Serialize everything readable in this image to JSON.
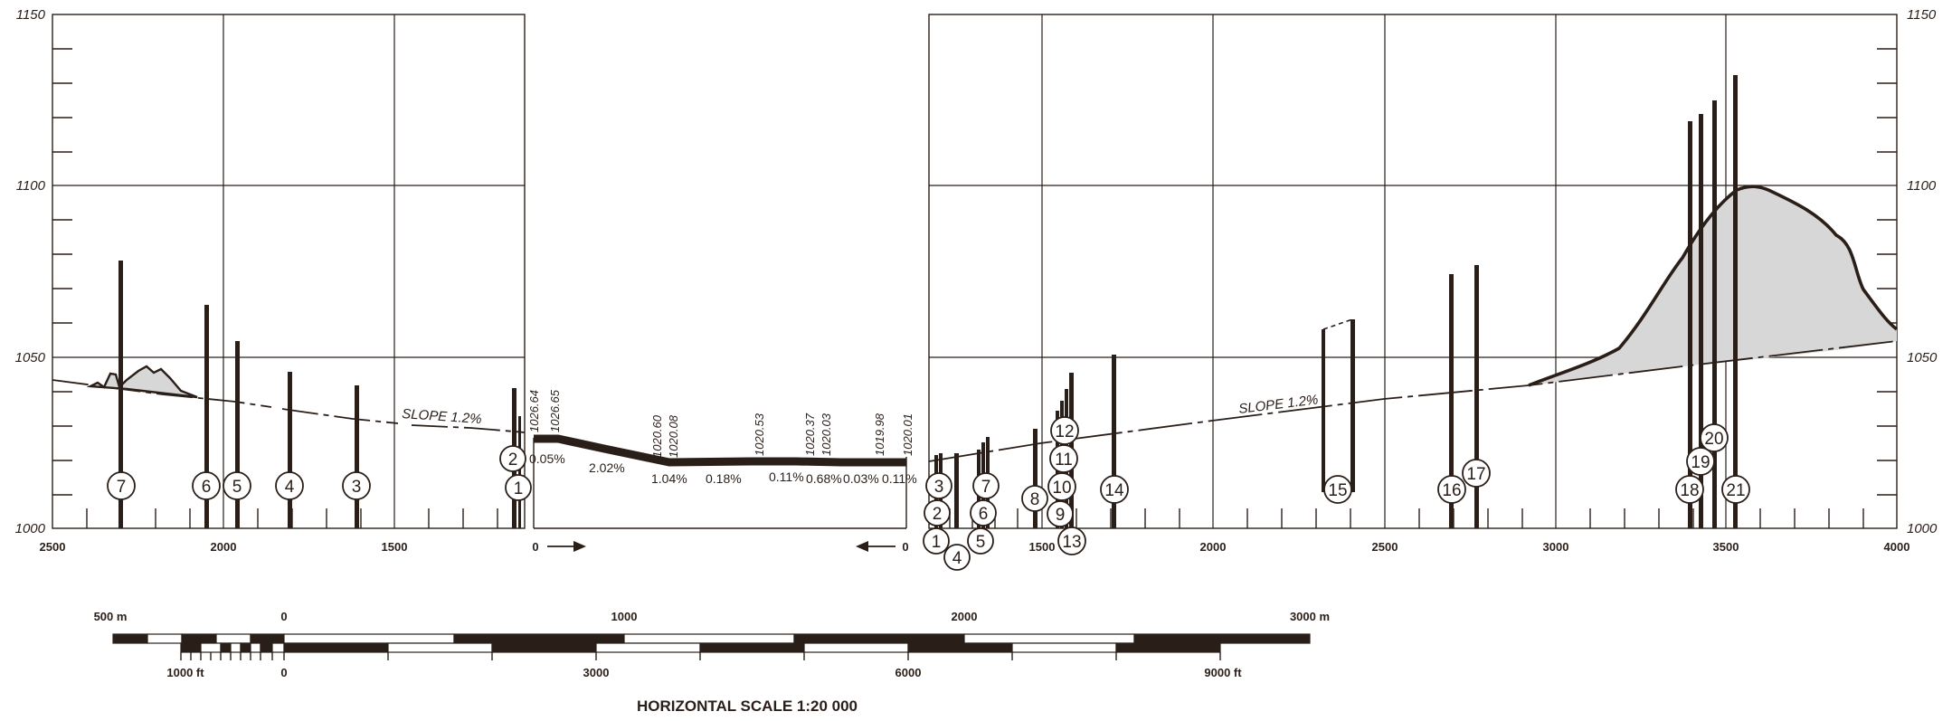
{
  "y_axis": {
    "labels": [
      "1150",
      "1100",
      "1050",
      "1000"
    ]
  },
  "left_panel": {
    "x_labels": [
      "2500",
      "2000",
      "1500",
      "0"
    ],
    "slope_label": "SLOPE 1.2%",
    "boreholes": [
      "7",
      "6",
      "5",
      "4",
      "3",
      "2",
      "1"
    ]
  },
  "middle_panel": {
    "elevations": [
      "1026.64",
      "1026.65",
      "1020.60",
      "1020.08",
      "1020.53",
      "1020.37",
      "1020.03",
      "1019.98",
      "1020.01"
    ],
    "grades": [
      "0.05%",
      "2.02%",
      "1.04%",
      "0.18%",
      "0.11%",
      "0.68%",
      "0.03%",
      "0.11%"
    ]
  },
  "right_panel": {
    "x_labels": [
      "0",
      "1500",
      "2000",
      "2500",
      "3000",
      "3500",
      "4000"
    ],
    "slope_label": "SLOPE 1.2%",
    "boreholes": [
      "1",
      "2",
      "3",
      "4",
      "5",
      "6",
      "7",
      "8",
      "9",
      "10",
      "11",
      "12",
      "13",
      "14",
      "15",
      "16",
      "17",
      "18",
      "19",
      "20",
      "21"
    ]
  },
  "scale_bar": {
    "metric_labels": [
      "500 m",
      "0",
      "1000",
      "2000",
      "3000 m"
    ],
    "imperial_labels": [
      "1000 ft",
      "0",
      "3000",
      "6000",
      "9000 ft"
    ],
    "title": "HORIZONTAL SCALE 1:20 000"
  },
  "colors": {
    "ink": "#2a1e18",
    "fill": "#d7d7d7"
  }
}
